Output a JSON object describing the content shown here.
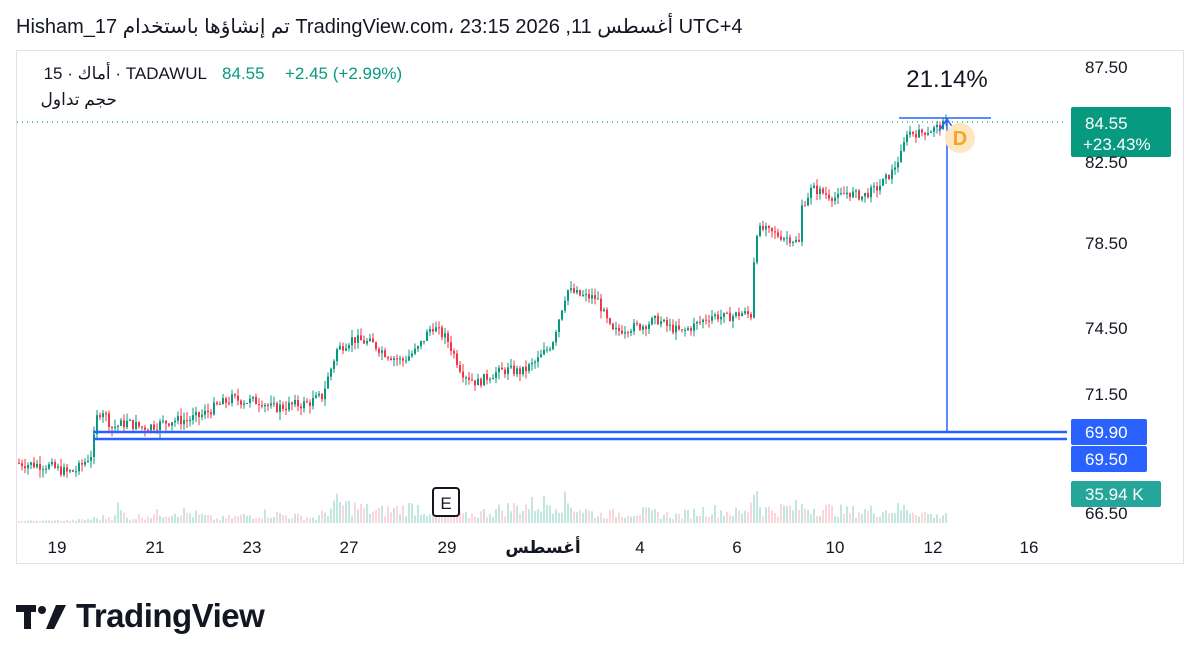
{
  "header": {
    "text": "Hisham_17 تم إنشاؤها باستخدام TradingView.com، 23:15 2026 ,11 أغسطس UTC+4"
  },
  "legend": {
    "symbol": "15 · أماك · TADAWUL",
    "price": "84.55",
    "change": "+2.45 (+2.99%)",
    "volume_label": "حجم تداول"
  },
  "brand": {
    "name": "TradingView"
  },
  "colors": {
    "up": "#089981",
    "down": "#f23645",
    "accent": "#2962ff",
    "badge_orange": "#f5a623"
  },
  "chart_data": {
    "type": "candlestick",
    "y_ticks": [
      "87.50",
      "82.50",
      "78.50",
      "74.50",
      "71.50",
      "66.50"
    ],
    "x_ticks": [
      "19",
      "21",
      "23",
      "27",
      "29",
      "أغسطس",
      "4",
      "6",
      "10",
      "12",
      "16"
    ],
    "ylim": [
      66.5,
      87.5
    ],
    "last_price": {
      "value": "84.55",
      "change": "+23.43%"
    },
    "levels": [
      {
        "value": "69.90"
      },
      {
        "value": "69.50"
      }
    ],
    "volume_last": "35.94 K",
    "measure": {
      "label": "21.14%",
      "from": 69.9,
      "to": 84.7
    },
    "markers": [
      {
        "label": "E",
        "x": "29"
      },
      {
        "label": "D",
        "x": "12"
      }
    ],
    "price_path": [
      [
        0,
        68.6
      ],
      [
        30,
        68.5
      ],
      [
        50,
        68.2
      ],
      [
        60,
        68.3
      ],
      [
        75,
        69.0
      ],
      [
        80,
        70.5
      ],
      [
        85,
        70.9
      ],
      [
        95,
        70.1
      ],
      [
        110,
        70.3
      ],
      [
        125,
        70.1
      ],
      [
        140,
        70.2
      ],
      [
        155,
        70.4
      ],
      [
        170,
        70.4
      ],
      [
        185,
        70.6
      ],
      [
        200,
        71.0
      ],
      [
        215,
        71.3
      ],
      [
        230,
        71.2
      ],
      [
        245,
        71.2
      ],
      [
        255,
        70.9
      ],
      [
        270,
        71.0
      ],
      [
        290,
        71.1
      ],
      [
        305,
        71.4
      ],
      [
        320,
        73.5
      ],
      [
        335,
        74.0
      ],
      [
        355,
        73.8
      ],
      [
        370,
        73.3
      ],
      [
        385,
        73.0
      ],
      [
        400,
        73.5
      ],
      [
        415,
        74.6
      ],
      [
        430,
        74.0
      ],
      [
        445,
        72.5
      ],
      [
        460,
        72.0
      ],
      [
        475,
        72.4
      ],
      [
        490,
        72.6
      ],
      [
        505,
        72.5
      ],
      [
        520,
        73.0
      ],
      [
        535,
        73.8
      ],
      [
        550,
        76.3
      ],
      [
        565,
        76.0
      ],
      [
        580,
        75.9
      ],
      [
        595,
        74.3
      ],
      [
        610,
        74.5
      ],
      [
        625,
        74.6
      ],
      [
        640,
        74.9
      ],
      [
        650,
        74.6
      ],
      [
        665,
        74.3
      ],
      [
        680,
        74.7
      ],
      [
        695,
        75.1
      ],
      [
        710,
        75.0
      ],
      [
        725,
        75.2
      ],
      [
        735,
        75.1
      ],
      [
        738,
        79.0
      ],
      [
        745,
        79.2
      ],
      [
        760,
        78.9
      ],
      [
        775,
        78.7
      ],
      [
        782,
        78.5
      ],
      [
        785,
        80.3
      ],
      [
        795,
        81.2
      ],
      [
        805,
        81.0
      ],
      [
        820,
        80.7
      ],
      [
        830,
        81.0
      ],
      [
        845,
        80.8
      ],
      [
        860,
        81.2
      ],
      [
        875,
        82.0
      ],
      [
        885,
        83.0
      ],
      [
        890,
        84.1
      ],
      [
        900,
        84.0
      ],
      [
        915,
        84.2
      ],
      [
        930,
        84.55
      ]
    ],
    "volume_profile": [
      [
        0,
        2
      ],
      [
        60,
        3
      ],
      [
        95,
        8
      ],
      [
        100,
        20
      ],
      [
        110,
        6
      ],
      [
        160,
        15
      ],
      [
        200,
        5
      ],
      [
        250,
        12
      ],
      [
        300,
        6
      ],
      [
        320,
        24
      ],
      [
        360,
        14
      ],
      [
        400,
        20
      ],
      [
        410,
        15
      ],
      [
        450,
        9
      ],
      [
        490,
        18
      ],
      [
        520,
        23
      ],
      [
        545,
        27
      ],
      [
        580,
        10
      ],
      [
        620,
        14
      ],
      [
        660,
        9
      ],
      [
        690,
        16
      ],
      [
        730,
        12
      ],
      [
        738,
        50
      ],
      [
        745,
        16
      ],
      [
        790,
        20
      ],
      [
        830,
        14
      ],
      [
        870,
        16
      ],
      [
        890,
        18
      ],
      [
        920,
        8
      ],
      [
        930,
        14
      ]
    ]
  }
}
